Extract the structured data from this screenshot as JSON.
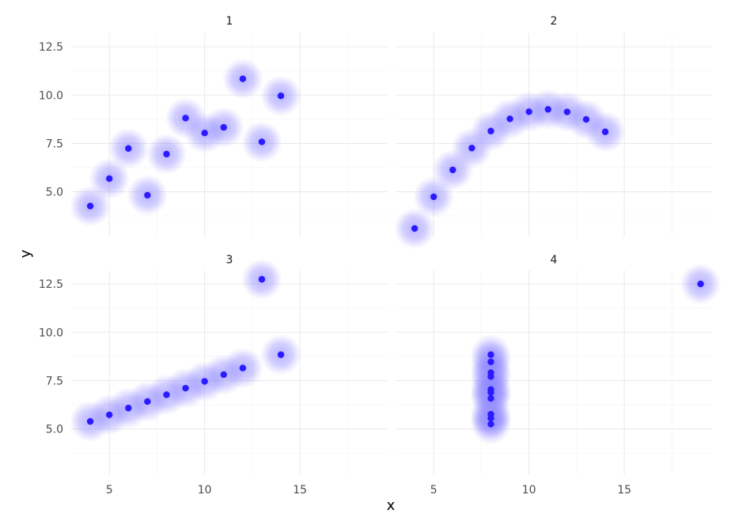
{
  "chart_data": {
    "type": "scatter",
    "xlabel": "x",
    "ylabel": "y",
    "xlim": [
      3,
      19.6
    ],
    "ylim": [
      2.65,
      13.2
    ],
    "x_ticks": [
      5,
      10,
      15
    ],
    "y_ticks": [
      5.0,
      7.5,
      10.0,
      12.5
    ],
    "x_tick_labels": [
      "5",
      "10",
      "15"
    ],
    "y_tick_labels": [
      "5.0",
      "7.5",
      "10.0",
      "12.5"
    ],
    "grid": true,
    "point_color": "#2b1bff",
    "glow_color": "#7b72ff",
    "panels": [
      {
        "label": "1",
        "points": [
          [
            4,
            4.26
          ],
          [
            5,
            5.68
          ],
          [
            6,
            7.24
          ],
          [
            7,
            4.82
          ],
          [
            8,
            6.95
          ],
          [
            9,
            8.81
          ],
          [
            10,
            8.04
          ],
          [
            11,
            8.33
          ],
          [
            12,
            10.84
          ],
          [
            13,
            7.58
          ],
          [
            14,
            9.96
          ]
        ]
      },
      {
        "label": "2",
        "points": [
          [
            4,
            3.1
          ],
          [
            5,
            4.74
          ],
          [
            6,
            6.13
          ],
          [
            7,
            7.26
          ],
          [
            8,
            8.14
          ],
          [
            9,
            8.77
          ],
          [
            10,
            9.14
          ],
          [
            11,
            9.26
          ],
          [
            12,
            9.13
          ],
          [
            13,
            8.74
          ],
          [
            14,
            8.1
          ]
        ]
      },
      {
        "label": "3",
        "points": [
          [
            4,
            5.39
          ],
          [
            5,
            5.73
          ],
          [
            6,
            6.08
          ],
          [
            7,
            6.42
          ],
          [
            8,
            6.77
          ],
          [
            9,
            7.11
          ],
          [
            10,
            7.46
          ],
          [
            11,
            7.81
          ],
          [
            12,
            8.15
          ],
          [
            13,
            12.74
          ],
          [
            14,
            8.84
          ]
        ]
      },
      {
        "label": "4",
        "points": [
          [
            8,
            5.25
          ],
          [
            8,
            5.56
          ],
          [
            8,
            5.76
          ],
          [
            8,
            6.58
          ],
          [
            8,
            6.89
          ],
          [
            8,
            7.04
          ],
          [
            8,
            7.71
          ],
          [
            8,
            7.91
          ],
          [
            8,
            8.47
          ],
          [
            8,
            8.84
          ],
          [
            19,
            12.5
          ]
        ]
      }
    ]
  }
}
